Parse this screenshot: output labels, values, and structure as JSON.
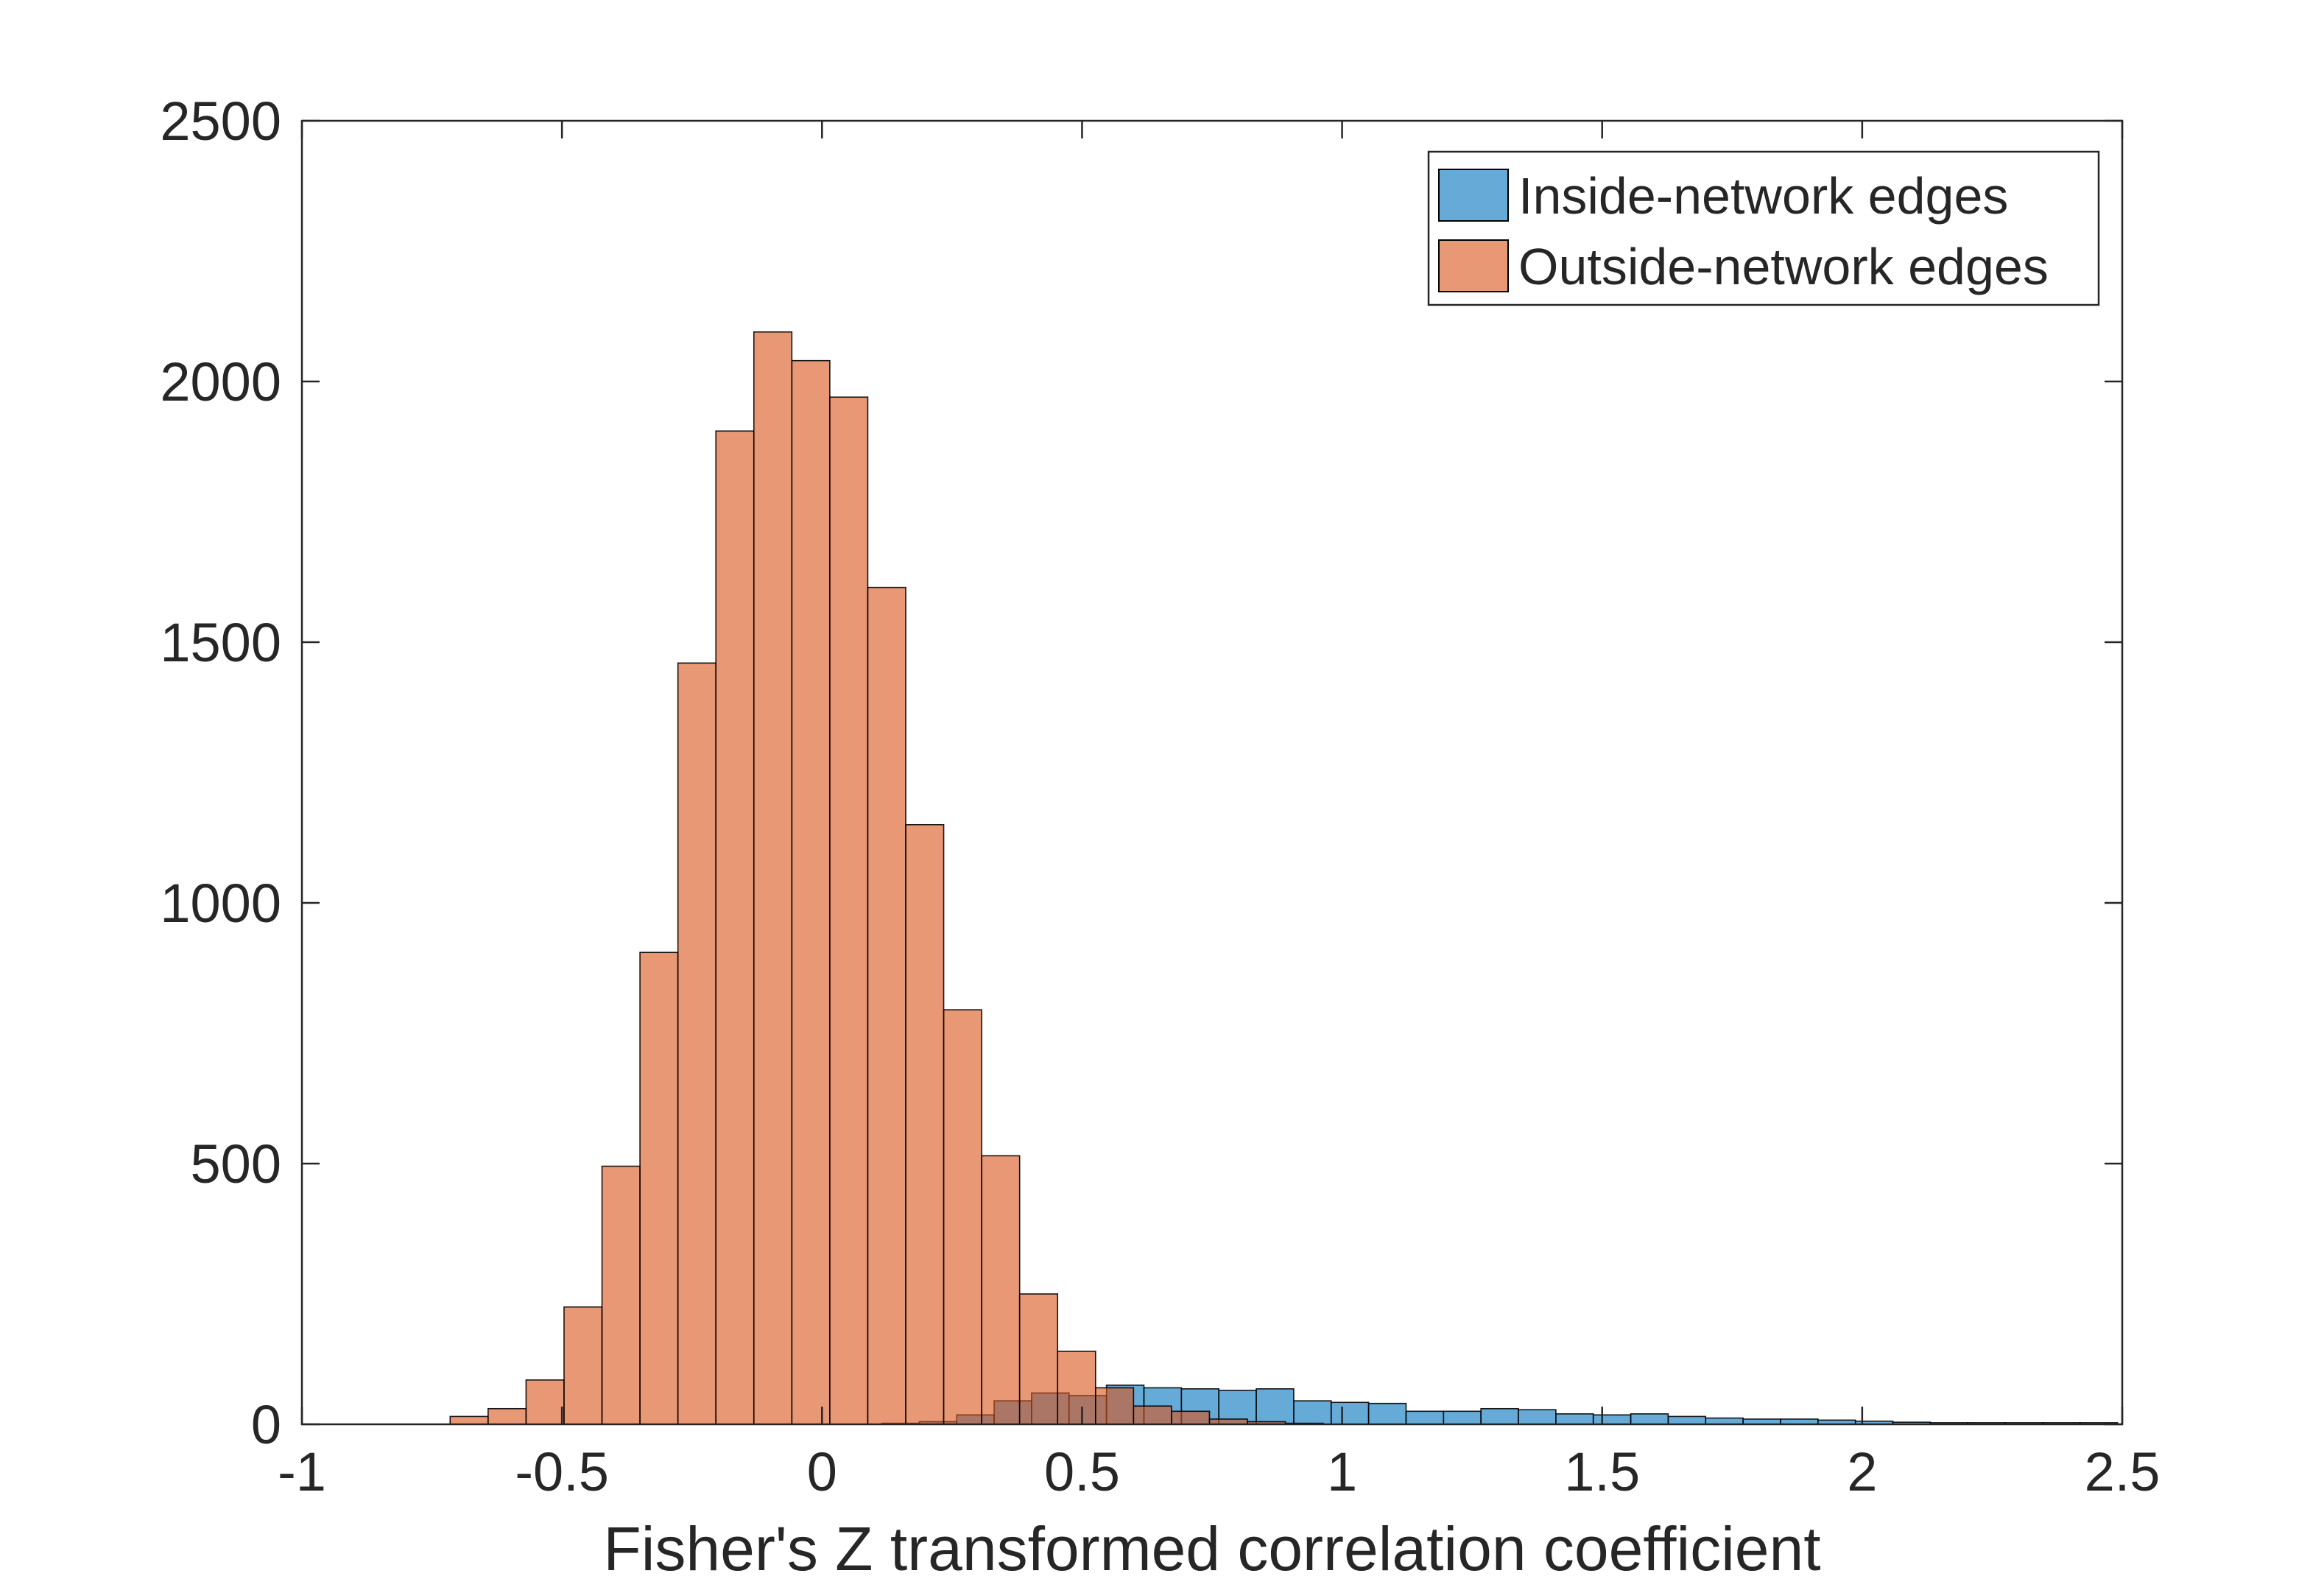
{
  "chart_data": {
    "type": "bar",
    "title": "",
    "xlabel": "Fisher's Z transformed correlation coefficient",
    "ylabel": "",
    "xlim": [
      -1,
      2.5
    ],
    "ylim": [
      0,
      2500
    ],
    "xticks": [
      "-1",
      "-0.5",
      "0",
      "0.5",
      "1",
      "1.5",
      "2",
      "2.5"
    ],
    "yticks": [
      "0",
      "500",
      "1000",
      "1500",
      "2000",
      "2500"
    ],
    "grid": false,
    "legend_position": "top-right",
    "series": [
      {
        "name": "Inside-network edges",
        "color": "#0072BD",
        "bin_edges": [
          0.115,
          0.187,
          0.259,
          0.331,
          0.403,
          0.475,
          0.547,
          0.619,
          0.691,
          0.763,
          0.835,
          0.907,
          0.979,
          1.051,
          1.123,
          1.195,
          1.267,
          1.339,
          1.411,
          1.483,
          1.555,
          1.627,
          1.699,
          1.771,
          1.843,
          1.915,
          1.987,
          2.059,
          2.131,
          2.203,
          2.275,
          2.347,
          2.419,
          2.491
        ],
        "values": [
          2,
          5,
          18,
          45,
          60,
          55,
          75,
          70,
          68,
          65,
          68,
          45,
          42,
          40,
          25,
          25,
          30,
          28,
          20,
          18,
          20,
          15,
          12,
          10,
          10,
          8,
          6,
          4,
          3,
          3,
          3,
          3,
          3
        ]
      },
      {
        "name": "Outside-network edges",
        "color": "#D95319",
        "bin_edges": [
          -0.715,
          -0.642,
          -0.569,
          -0.496,
          -0.423,
          -0.35,
          -0.277,
          -0.204,
          -0.131,
          -0.058,
          0.015,
          0.088,
          0.161,
          0.234,
          0.307,
          0.38,
          0.453,
          0.526,
          0.599,
          0.672,
          0.745,
          0.818,
          0.891,
          0.964
        ],
        "values": [
          15,
          30,
          85,
          225,
          495,
          905,
          1460,
          1905,
          2095,
          2040,
          1970,
          1605,
          1150,
          795,
          515,
          250,
          140,
          70,
          35,
          25,
          10,
          5,
          2
        ]
      }
    ]
  }
}
